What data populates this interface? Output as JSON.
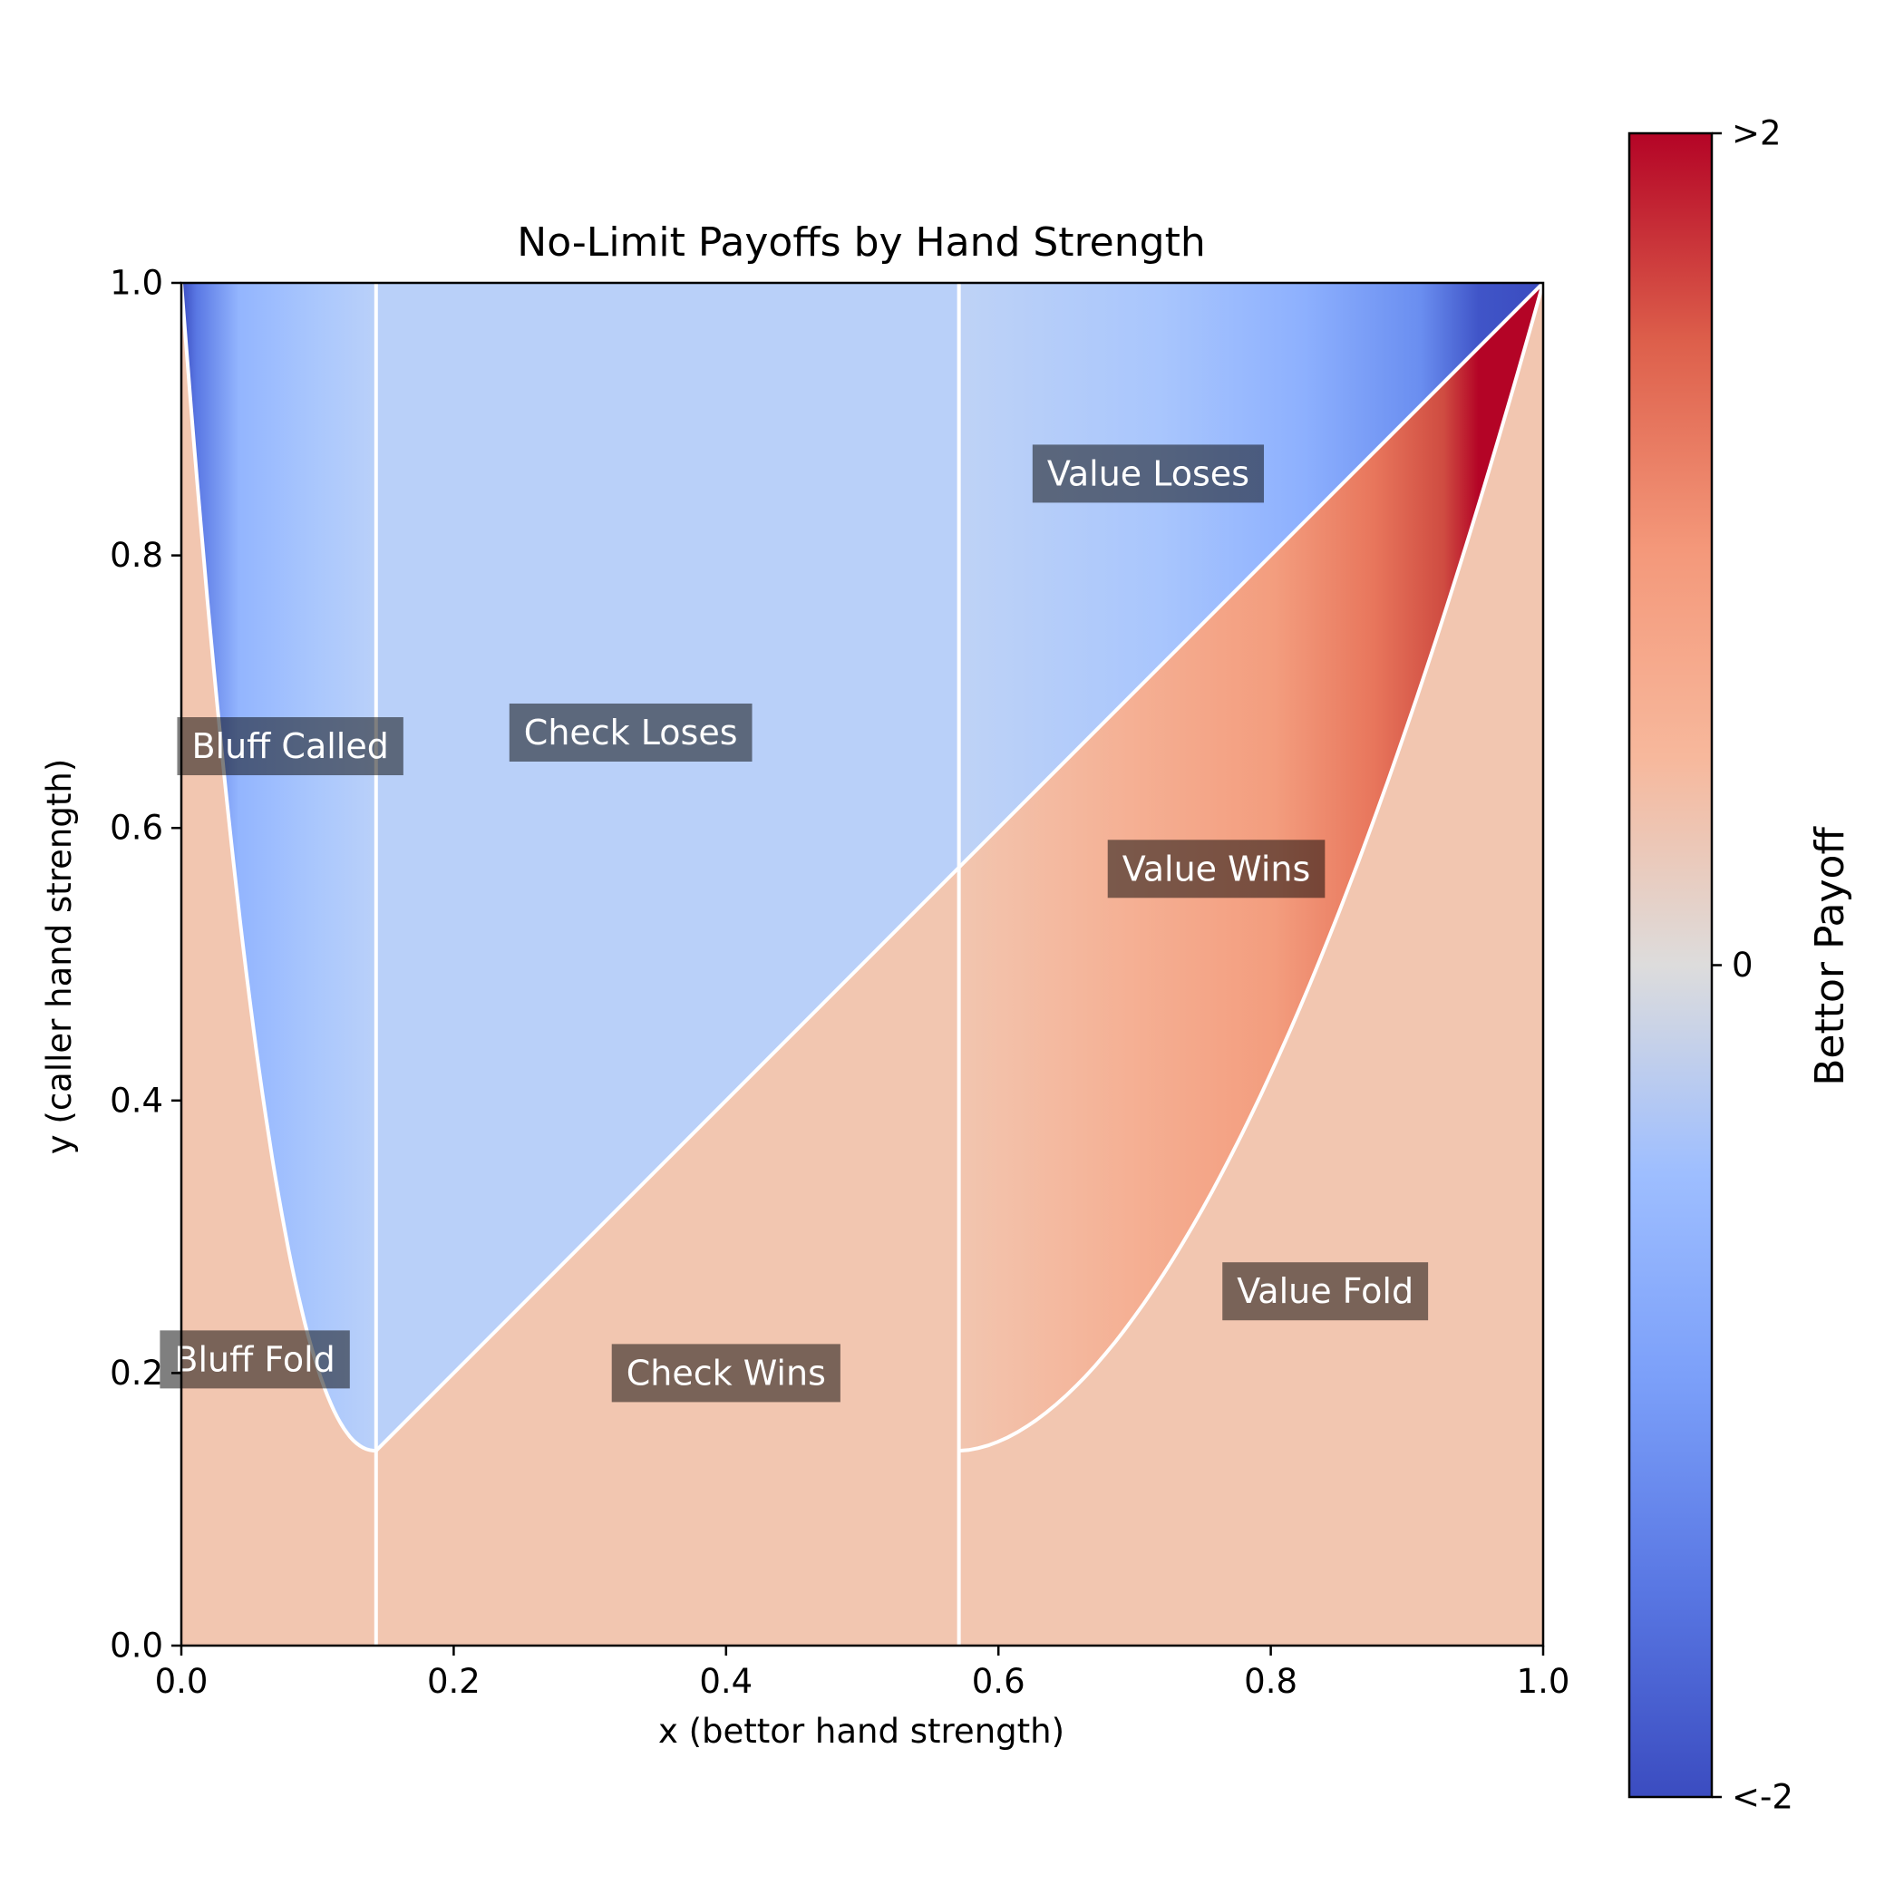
{
  "chart_data": {
    "type": "heatmap",
    "title": "No-Limit Payoffs by Hand Strength",
    "xlabel": "x (bettor hand strength)",
    "ylabel": "y (caller hand strength)",
    "xlim": [
      0.0,
      1.0
    ],
    "ylim": [
      0.0,
      1.0
    ],
    "x_ticks": [
      "0.0",
      "0.2",
      "0.4",
      "0.6",
      "0.8",
      "1.0"
    ],
    "y_ticks": [
      "0.0",
      "0.2",
      "0.4",
      "0.6",
      "0.8",
      "1.0"
    ],
    "colormap": "coolwarm",
    "colorbar": {
      "label": "Bettor Payoff",
      "range": [
        -2,
        2
      ],
      "ticks": [
        {
          "value": 2,
          "label": ">2"
        },
        {
          "value": 0,
          "label": "0"
        },
        {
          "value": -2,
          "label": "<-2"
        }
      ]
    },
    "thresholds": {
      "bluff_max_x": 0.143,
      "value_min_x": 0.571,
      "min_call_y": 0.143
    },
    "diagonal": {
      "from": [
        0.143,
        0.143
      ],
      "to": [
        1.0,
        1.0
      ]
    },
    "region_payoffs": {
      "check_loses": -0.5,
      "check_wins": 0.5,
      "fold": 0.5
    },
    "regions": [
      {
        "label": "Bluff Called",
        "x": 0.08,
        "y": 0.66
      },
      {
        "label": "Check Loses",
        "x": 0.33,
        "y": 0.67
      },
      {
        "label": "Value Loses",
        "x": 0.71,
        "y": 0.86
      },
      {
        "label": "Value Wins",
        "x": 0.76,
        "y": 0.57
      },
      {
        "label": "Bluff Fold",
        "x": 0.054,
        "y": 0.21
      },
      {
        "label": "Check Wins",
        "x": 0.4,
        "y": 0.2
      },
      {
        "label": "Value Fold",
        "x": 0.84,
        "y": 0.26
      }
    ]
  }
}
